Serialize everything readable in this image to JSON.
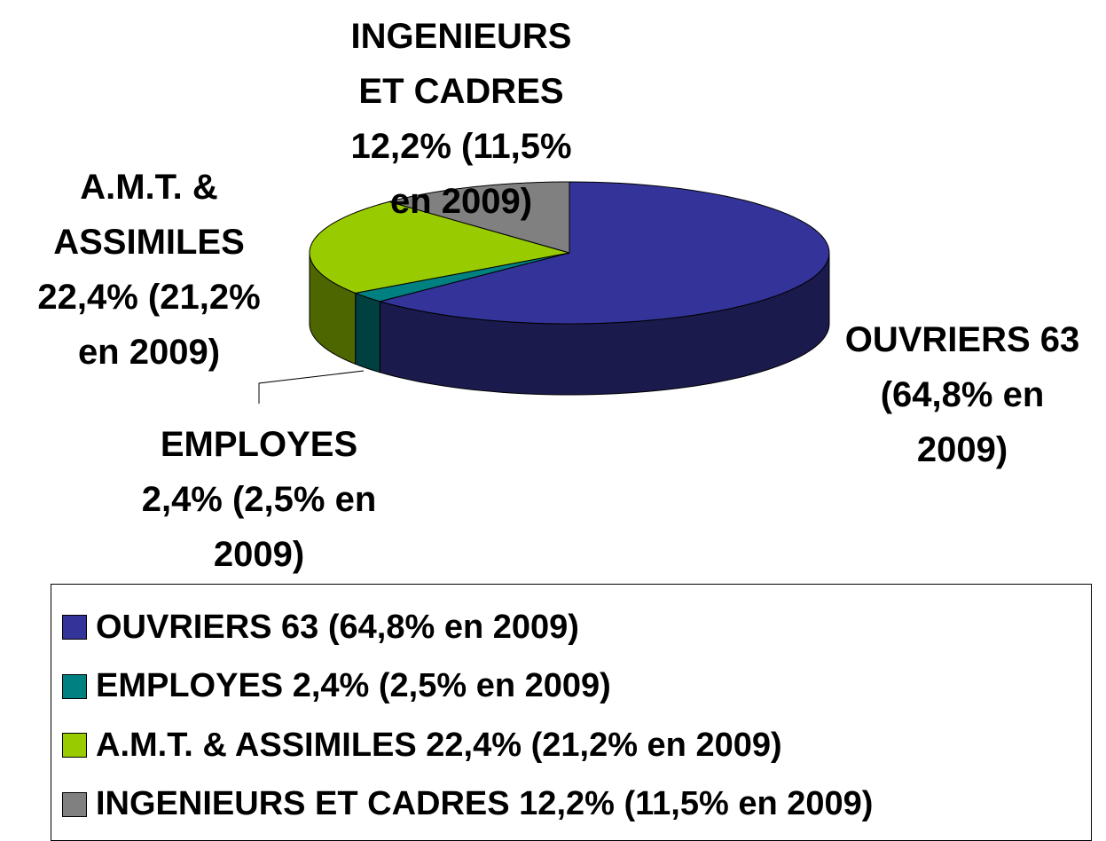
{
  "chart_data": {
    "type": "pie",
    "categories": [
      "OUVRIERS 63 (64,8% en 2009)",
      "EMPLOYES 2,4% (2,5% en 2009)",
      "A.M.T. & ASSIMILES 22,4% (21,2% en 2009)",
      "INGENIEURS ET CADRES 12,2% (11,5% en 2009)"
    ],
    "values": [
      63,
      2.4,
      22.4,
      12.2
    ],
    "colors": [
      "#333399",
      "#008080",
      "#99cc00",
      "#808080"
    ],
    "legend": "bottom"
  }
}
